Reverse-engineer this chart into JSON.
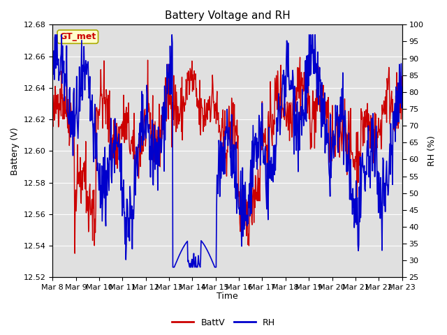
{
  "title": "Battery Voltage and RH",
  "xlabel": "Time",
  "ylabel_left": "Battery (V)",
  "ylabel_right": "RH (%)",
  "left_ylim": [
    12.52,
    12.68
  ],
  "right_ylim": [
    25,
    100
  ],
  "left_yticks": [
    12.52,
    12.54,
    12.56,
    12.58,
    12.6,
    12.62,
    12.64,
    12.66,
    12.68
  ],
  "right_yticks": [
    25,
    30,
    35,
    40,
    45,
    50,
    55,
    60,
    65,
    70,
    75,
    80,
    85,
    90,
    95,
    100
  ],
  "xtick_labels": [
    "Mar 8",
    "Mar 9",
    "Mar 10",
    "Mar 11",
    "Mar 12",
    "Mar 13",
    "Mar 14",
    "Mar 15",
    "Mar 16",
    "Mar 17",
    "Mar 18",
    "Mar 19",
    "Mar 20",
    "Mar 21",
    "Mar 22",
    "Mar 23"
  ],
  "battv_color": "#cc0000",
  "rh_color": "#0000cc",
  "background_color": "#e0e0e0",
  "fig_bg_color": "#ffffff",
  "legend_label_battv": "BattV",
  "legend_label_rh": "RH",
  "annotation_text": "GT_met",
  "annotation_color": "#cc0000",
  "annotation_bg": "#ffffcc",
  "annotation_border": "#aaaa00",
  "title_fontsize": 11,
  "axis_fontsize": 9,
  "tick_fontsize": 8,
  "legend_fontsize": 9,
  "linewidth_battv": 1.0,
  "linewidth_rh": 1.2,
  "n_days": 16,
  "n_per_day": 48,
  "seed": 42
}
